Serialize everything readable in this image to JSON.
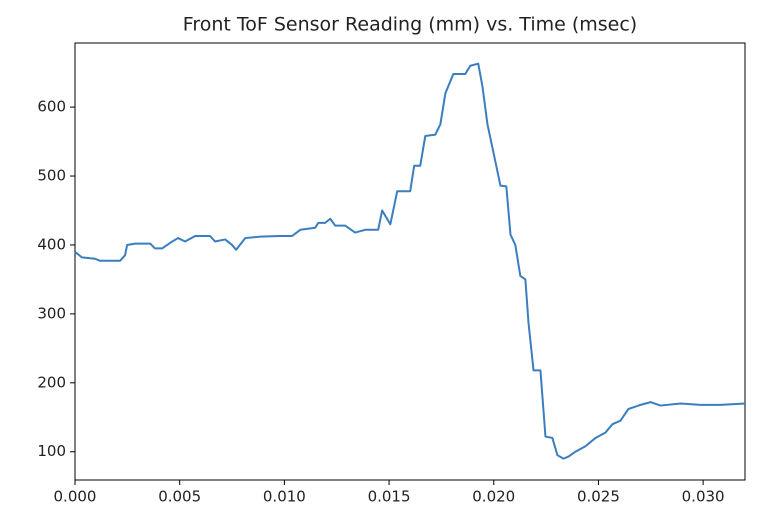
{
  "chart_data": {
    "type": "line",
    "title": "Front ToF Sensor Reading (mm) vs. Time (msec)",
    "x": [
      0,
      0.00033,
      0.00096,
      0.0012,
      0.00215,
      0.00239,
      0.00249,
      0.00287,
      0.00359,
      0.00382,
      0.00416,
      0.00454,
      0.00492,
      0.00526,
      0.00574,
      0.00645,
      0.00669,
      0.00717,
      0.0075,
      0.0077,
      0.00813,
      0.00884,
      0.0098,
      0.01037,
      0.01076,
      0.01147,
      0.01162,
      0.01195,
      0.01219,
      0.01243,
      0.01291,
      0.01338,
      0.01386,
      0.01448,
      0.01467,
      0.01506,
      0.01539,
      0.01601,
      0.0162,
      0.01649,
      0.01673,
      0.01721,
      0.01745,
      0.01769,
      0.01807,
      0.01864,
      0.01888,
      0.01926,
      0.01946,
      0.0197,
      0.01998,
      0.02032,
      0.0206,
      0.0208,
      0.02103,
      0.02127,
      0.02151,
      0.02166,
      0.0219,
      0.02223,
      0.02247,
      0.0228,
      0.02304,
      0.02333,
      0.02357,
      0.0239,
      0.02438,
      0.02486,
      0.02534,
      0.02567,
      0.02605,
      0.02643,
      0.02701,
      0.02749,
      0.02796,
      0.02892,
      0.02988,
      0.03083,
      0.032
    ],
    "series": [
      {
        "color": "#3a7ebf",
        "values": [
          390,
          382,
          380,
          377,
          377,
          385,
          400,
          402,
          402,
          395,
          395,
          403,
          410,
          405,
          413,
          413,
          405,
          408,
          400,
          393,
          410,
          412,
          413,
          413,
          422,
          425,
          432,
          432,
          438,
          428,
          428,
          418,
          422,
          422,
          450,
          430,
          478,
          478,
          515,
          515,
          558,
          560,
          575,
          620,
          648,
          648,
          660,
          663,
          630,
          575,
          535,
          486,
          485,
          415,
          400,
          355,
          350,
          287,
          218,
          218,
          122,
          120,
          95,
          90,
          93,
          100,
          108,
          120,
          128,
          140,
          145,
          162,
          168,
          172,
          167,
          170,
          168,
          168,
          170
        ]
      }
    ],
    "xlim": [
      0,
      0.032
    ],
    "ylim": [
      59,
      693
    ],
    "xticks": [
      {
        "value": 0,
        "label": "0.000"
      },
      {
        "value": 0.005,
        "label": "0.005"
      },
      {
        "value": 0.01,
        "label": "0.010"
      },
      {
        "value": 0.015,
        "label": "0.015"
      },
      {
        "value": 0.02,
        "label": "0.020"
      },
      {
        "value": 0.025,
        "label": "0.025"
      },
      {
        "value": 0.03,
        "label": "0.030"
      }
    ],
    "yticks": [
      100,
      200,
      300,
      400,
      500,
      600
    ]
  }
}
